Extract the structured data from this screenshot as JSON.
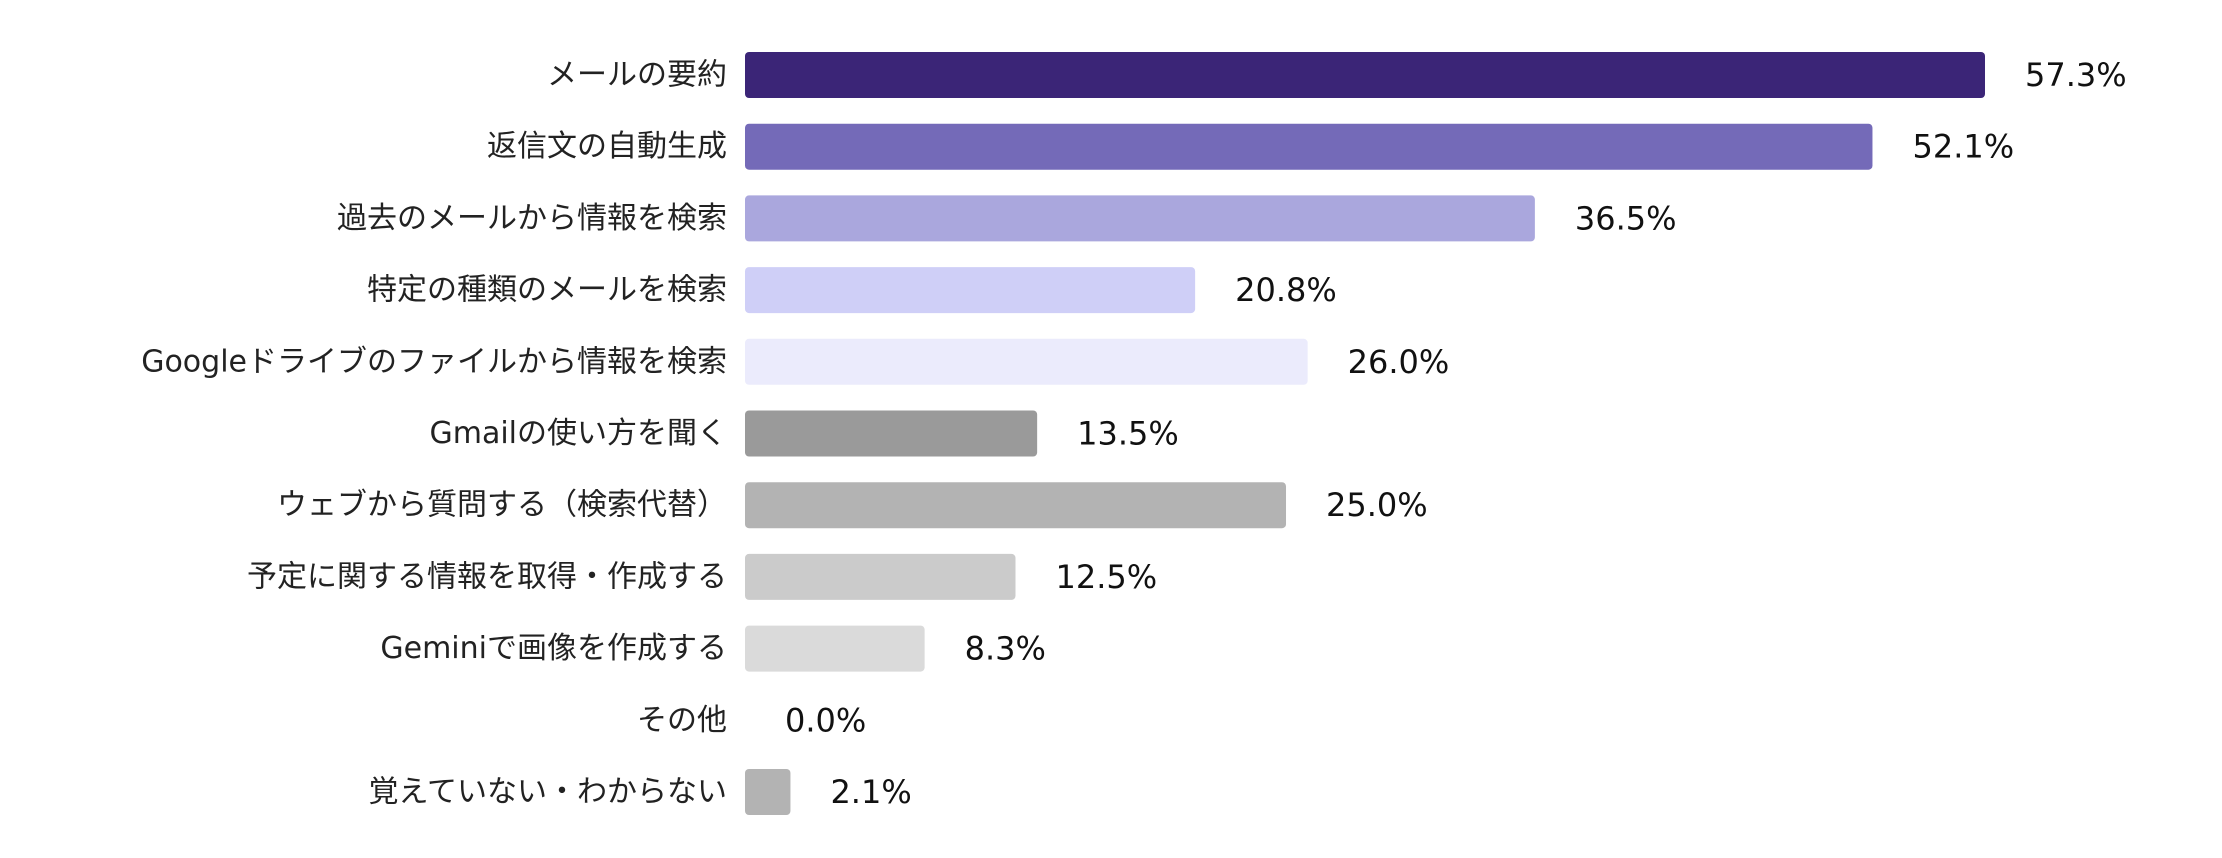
{
  "chart_data": {
    "type": "bar",
    "orientation": "horizontal",
    "categories": [
      "メールの要約",
      "返信文の自動生成",
      "過去のメールから情報を検索",
      "特定の種類のメールを検索",
      "Googleドライブのファイルから情報を検索",
      "Gmailの使い方を聞く",
      "ウェブから質問する（検索代替）",
      "予定に関する情報を取得・作成する",
      "Geminiで画像を作成する",
      "その他",
      "覚えていない・わからない"
    ],
    "values": [
      57.3,
      52.1,
      36.5,
      20.8,
      26.0,
      13.5,
      25.0,
      12.5,
      8.3,
      0.0,
      2.1
    ],
    "value_labels": [
      "57.3%",
      "52.1%",
      "36.5%",
      "20.8%",
      "26.0%",
      "13.5%",
      "25.0%",
      "12.5%",
      "8.3%",
      "0.0%",
      "2.1%"
    ],
    "colors": [
      "#3b2577",
      "#746ab8",
      "#aaa7dd",
      "#cfcff7",
      "#ebebfc",
      "#9a9a9a",
      "#b3b3b3",
      "#cbcbcb",
      "#dadada",
      "#cccccc",
      "#b3b3b3"
    ],
    "unit": "%",
    "xlim": [
      0,
      57.3
    ],
    "grid": false,
    "legend": "none"
  }
}
